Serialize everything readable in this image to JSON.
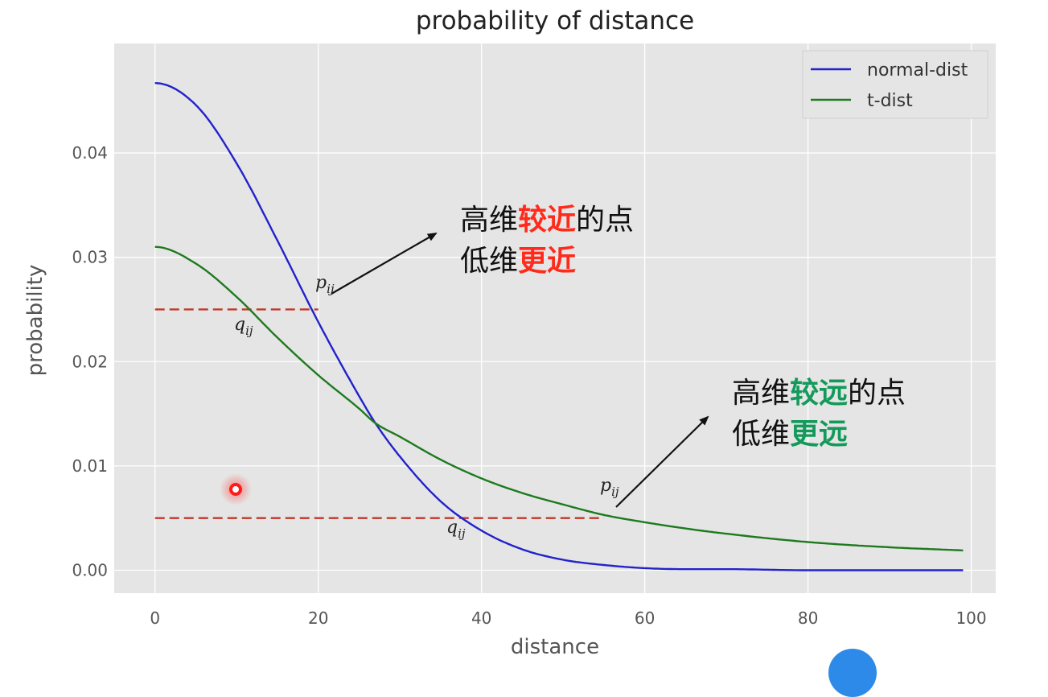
{
  "chart_data": {
    "type": "line",
    "title": "probability of distance",
    "xlabel": "distance",
    "ylabel": "probability",
    "xlim": [
      -5,
      103
    ],
    "ylim": [
      -0.0022,
      0.0505
    ],
    "xticks": [
      0,
      20,
      40,
      60,
      80,
      100
    ],
    "xtick_labels": [
      "0",
      "20",
      "40",
      "60",
      "80",
      "100"
    ],
    "yticks": [
      0.0,
      0.01,
      0.02,
      0.03,
      0.04
    ],
    "ytick_labels": [
      "0.00",
      "0.01",
      "0.02",
      "0.03",
      "0.04"
    ],
    "grid": true,
    "legend_position": "top-right",
    "series": [
      {
        "name": "normal-dist",
        "color": "#2222cc",
        "x": [
          0,
          5,
          10,
          15,
          20,
          25,
          27,
          30,
          35,
          40,
          45,
          50,
          55,
          60,
          65,
          70,
          80,
          90,
          99
        ],
        "y": [
          0.0467,
          0.0446,
          0.039,
          0.0316,
          0.0238,
          0.0167,
          0.0141,
          0.0109,
          0.0066,
          0.0038,
          0.002,
          0.001,
          0.0005,
          0.0002,
          0.0001,
          0.0001,
          0.0,
          0.0,
          0.0
        ]
      },
      {
        "name": "t-dist",
        "color": "#1e7a1e",
        "x": [
          0,
          5,
          10,
          15,
          20,
          25,
          27,
          30,
          35,
          40,
          45,
          50,
          55,
          60,
          65,
          70,
          80,
          90,
          99
        ],
        "y": [
          0.031,
          0.0294,
          0.0262,
          0.0223,
          0.0187,
          0.0155,
          0.0141,
          0.0128,
          0.0106,
          0.0088,
          0.0074,
          0.0063,
          0.0053,
          0.0046,
          0.004,
          0.0035,
          0.0027,
          0.0022,
          0.0019
        ]
      }
    ],
    "reference_lines": [
      {
        "y": 0.025,
        "x_from": 0,
        "x_to": 20,
        "color": "#c0392b"
      },
      {
        "y": 0.005,
        "x_from": 0,
        "x_to": 55,
        "color": "#c0392b"
      }
    ],
    "annotations": [
      {
        "id": "near",
        "lines": [
          [
            {
              "text": "高维",
              "color": "#111111"
            },
            {
              "text": "较近",
              "color": "#ff2a1a"
            },
            {
              "text": "的点",
              "color": "#111111"
            }
          ],
          [
            {
              "text": "低维",
              "color": "#111111"
            },
            {
              "text": "更近",
              "color": "#ff2a1a"
            }
          ]
        ]
      },
      {
        "id": "far",
        "lines": [
          [
            {
              "text": "高维",
              "color": "#111111"
            },
            {
              "text": "较远",
              "color": "#139a5a"
            },
            {
              "text": "的点",
              "color": "#111111"
            }
          ],
          [
            {
              "text": "低维",
              "color": "#111111"
            },
            {
              "text": "更远",
              "color": "#139a5a"
            }
          ]
        ]
      }
    ],
    "symbol_labels": [
      {
        "main": "p",
        "sub": "ij"
      },
      {
        "main": "q",
        "sub": "ij"
      },
      {
        "main": "p",
        "sub": "ij"
      },
      {
        "main": "q",
        "sub": "ij"
      }
    ]
  },
  "colors": {
    "plot_background": "#e5e5e5",
    "grid": "#ffffff",
    "cursor_marker": "#ff1a1a",
    "fab": "#2e8ae8"
  }
}
